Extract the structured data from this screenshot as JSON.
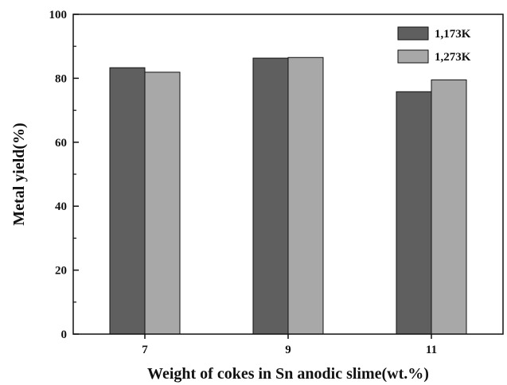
{
  "chart_data": {
    "type": "bar",
    "title": "",
    "xlabel": "Weight of cokes in Sn anodic slime(wt.%)",
    "ylabel": "Metal yield(%)",
    "categories": [
      "7",
      "9",
      "11"
    ],
    "series": [
      {
        "name": "1,173K",
        "values": [
          83.3,
          86.3,
          75.8
        ],
        "color": "#5f5f5f"
      },
      {
        "name": "1,273K",
        "values": [
          81.9,
          86.5,
          79.5
        ],
        "color": "#a8a8a8"
      }
    ],
    "ylim": [
      0,
      100
    ],
    "yticks": [
      "0",
      "20",
      "40",
      "60",
      "80",
      "100"
    ],
    "grid": false,
    "legend_position": "top-right"
  }
}
